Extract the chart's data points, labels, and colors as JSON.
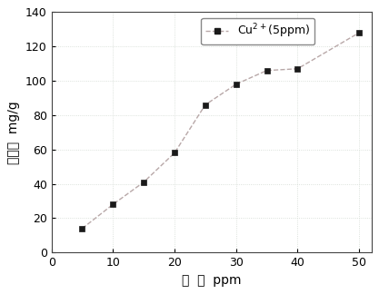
{
  "x": [
    5,
    10,
    15,
    20,
    25,
    30,
    35,
    40,
    50
  ],
  "y": [
    14,
    28,
    41,
    58,
    86,
    98,
    106,
    107,
    128
  ],
  "line_color": "#b8a8a8",
  "marker_color": "#1a1a1a",
  "marker": "s",
  "marker_size": 5,
  "line_style": "--",
  "line_width": 1.0,
  "xlabel": "浓  度  ppm",
  "ylabel": "吸附量  mg/g",
  "xlim": [
    0,
    52
  ],
  "ylim": [
    0,
    140
  ],
  "xticks": [
    0,
    10,
    20,
    30,
    40,
    50
  ],
  "yticks": [
    0,
    20,
    40,
    60,
    80,
    100,
    120,
    140
  ],
  "legend_label": "Cu$^{2+}$(5ppm)",
  "grid_color": "#d0d8d0",
  "grid_linestyle": ":",
  "grid_linewidth": 0.6,
  "background_color": "#ffffff",
  "font_size_axis": 10,
  "font_size_tick": 9,
  "font_size_legend": 9,
  "spine_color": "#444444",
  "spine_linewidth": 0.8
}
